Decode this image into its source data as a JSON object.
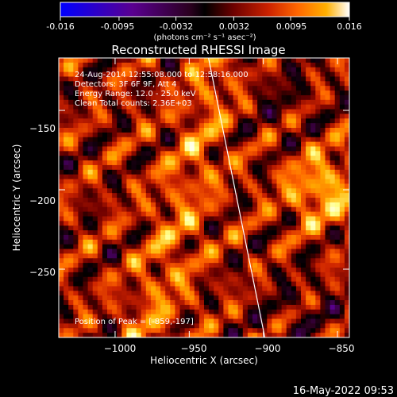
{
  "colorbar": {
    "ticks": [
      "-0.016",
      "-0.0095",
      "-0.0032",
      "0.0032",
      "0.0095",
      "0.016"
    ],
    "tick_values": [
      -0.016,
      -0.0095,
      -0.0032,
      0.0032,
      0.0095,
      0.016
    ],
    "range": [
      -0.016,
      0.016
    ],
    "unit_label": "(photons cm⁻² s⁻¹ asec⁻²)"
  },
  "chart_data": {
    "type": "heatmap",
    "title": "Reconstructed RHESSI Image",
    "xlabel": "Heliocentric X (arcsec)",
    "ylabel": "Heliocentric Y (arcsec)",
    "xlim": [
      -1038,
      -842
    ],
    "ylim": [
      -293,
      -117
    ],
    "x_ticks": [
      -1000,
      -950,
      -900,
      -850
    ],
    "y_ticks": [
      -150,
      -200,
      -250
    ],
    "x_tick_labels": [
      "−1000",
      "−950",
      "−900",
      "−850"
    ],
    "y_tick_labels": [
      "−150",
      "−200",
      "−250"
    ],
    "limb_line": {
      "x": [
        -937,
        -899
      ],
      "y": [
        -117,
        -293
      ]
    },
    "peak": {
      "x": -859,
      "y": -197
    },
    "colorscale": [
      "#0000ff",
      "#5a0090",
      "#2a001e",
      "#000000",
      "#6e0000",
      "#cc2200",
      "#ff6600",
      "#ffb000",
      "#ffff88",
      "#ffffff"
    ],
    "annotations": {
      "time": "24-Aug-2014 12:55:08.000 to 12:58:16.000",
      "detectors": "Detectors: 3F 6F 9F, Att 4",
      "energy": "Energy Range: 12.0 - 25.0 keV",
      "clean": "Clean    Total counts: 2.36E+03",
      "peak_text": "Position of Peak = [-859,-197]"
    }
  },
  "footer": {
    "timestamp": "16-May-2022 09:53"
  }
}
